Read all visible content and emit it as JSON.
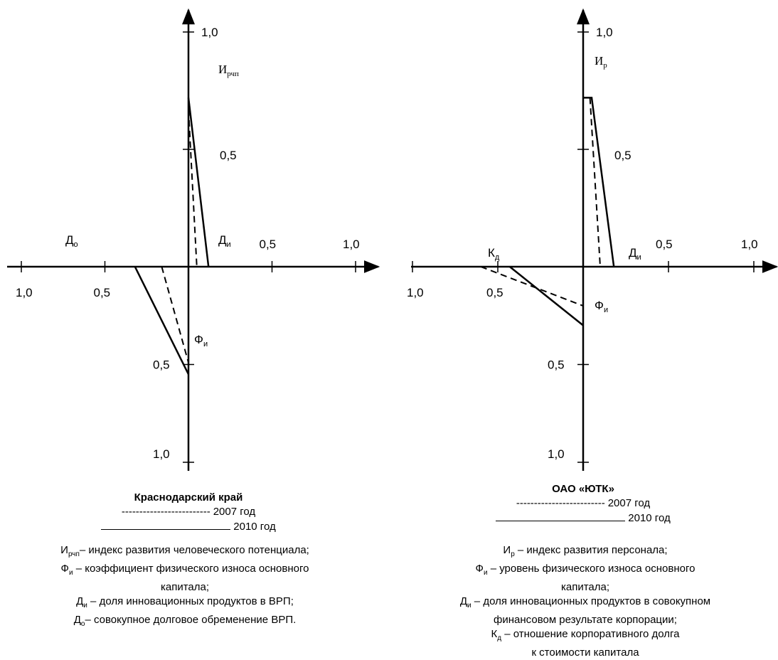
{
  "chart_data": [
    {
      "type": "radar",
      "axes": {
        "up": {
          "name": "И",
          "sub": "рчп",
          "ticks": [
            "1,0",
            "0,5"
          ]
        },
        "right": {
          "name": "Д",
          "sub": "и",
          "ticks": [
            "0,5",
            "1,0"
          ]
        },
        "down": {
          "name": "Ф",
          "sub": "и",
          "ticks": [
            "0,5",
            "1,0"
          ]
        },
        "left": {
          "name": "Д",
          "sub": "о",
          "ticks": [
            "0,5",
            "1,0"
          ]
        }
      },
      "series": [
        {
          "name": "2007 год",
          "style": "dashed",
          "up": 0.67,
          "right": 0.05,
          "down": 0.49,
          "left": 0.16
        },
        {
          "name": "2010 год",
          "style": "solid",
          "up": 0.72,
          "right": 0.12,
          "down": 0.55,
          "left": 0.32
        }
      ],
      "title": "Краснодарский край",
      "legend": [
        "2007 год",
        "2010 год"
      ],
      "definitions": [
        {
          "term": "И",
          "sub": "рчп",
          "text": "– индекс развития человеческого потенциала;"
        },
        {
          "term": "Ф",
          "sub": "и",
          "text": " – коэффициент физического износа основного капитала;"
        },
        {
          "term": "Д",
          "sub": "и",
          "text": " – доля инновационных продуктов в ВРП;"
        },
        {
          "term": "Д",
          "sub": "о",
          "text": "– совокупное долговое обременение ВРП."
        }
      ]
    },
    {
      "type": "radar",
      "axes": {
        "up": {
          "name": "И",
          "sub": "р",
          "ticks": [
            "1,0",
            "0,5"
          ]
        },
        "right": {
          "name": "Д",
          "sub": "и",
          "ticks": [
            "0,5",
            "1,0"
          ]
        },
        "down": {
          "name": "Ф",
          "sub": "и",
          "ticks": [
            "0,5",
            "1,0"
          ]
        },
        "left": {
          "name": "К",
          "sub": "д",
          "ticks": [
            "0,5",
            "1,0"
          ]
        }
      },
      "series": [
        {
          "name": "2007 год",
          "style": "dashed",
          "up": 0.72,
          "right": 0.1,
          "down": 0.2,
          "left": 0.6
        },
        {
          "name": "2010 год",
          "style": "solid",
          "up": 0.72,
          "right": 0.18,
          "down": 0.3,
          "left": 0.43
        }
      ],
      "title": "ОАО «ЮТК»",
      "legend": [
        "2007 год",
        "2010 год"
      ],
      "definitions": [
        {
          "term": "И",
          "sub": "р",
          "text": " – индекс развития персонала;"
        },
        {
          "term": "Ф",
          "sub": "и",
          "text": " – уровень физического износа основного капитала;"
        },
        {
          "term": "Д",
          "sub": "и",
          "text": " – доля инновационных продуктов в совокупном финансовом результате корпорации;"
        },
        {
          "term": "К",
          "sub": "д",
          "text": " – отношение корпоративного долга к стоимости капитала"
        }
      ]
    }
  ],
  "legend_dashes": "-------------------------"
}
